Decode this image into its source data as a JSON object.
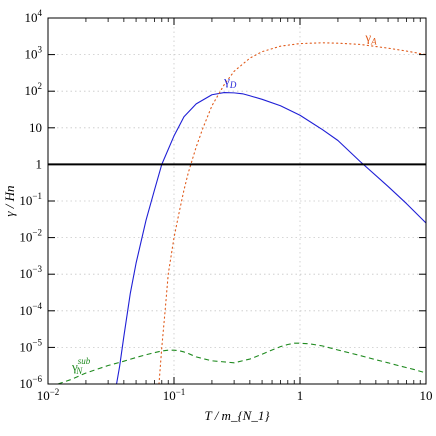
{
  "chart_data": {
    "type": "line",
    "xlabel": "T / m_{N_1}",
    "ylabel": "γ / Hn",
    "xscale": "log",
    "yscale": "log",
    "xlim": [
      0.01,
      10
    ],
    "ylim": [
      1e-06,
      10000
    ],
    "grid": true,
    "x_ticks": [
      {
        "value": 0.01,
        "mant": "10",
        "exp": "−2"
      },
      {
        "value": 0.1,
        "mant": "10",
        "exp": "−1"
      },
      {
        "value": 1,
        "mant": "1",
        "exp": ""
      },
      {
        "value": 10,
        "mant": "10",
        "exp": ""
      }
    ],
    "y_ticks": [
      {
        "value": 1e-06,
        "mant": "10",
        "exp": "−6"
      },
      {
        "value": 1e-05,
        "mant": "10",
        "exp": "−5"
      },
      {
        "value": 0.0001,
        "mant": "10",
        "exp": "−4"
      },
      {
        "value": 0.001,
        "mant": "10",
        "exp": "−3"
      },
      {
        "value": 0.01,
        "mant": "10",
        "exp": "−2"
      },
      {
        "value": 0.1,
        "mant": "10",
        "exp": "−1"
      },
      {
        "value": 1,
        "mant": "1",
        "exp": ""
      },
      {
        "value": 10,
        "mant": "10",
        "exp": ""
      },
      {
        "value": 100,
        "mant": "10",
        "exp": "2"
      },
      {
        "value": 1000,
        "mant": "10",
        "exp": "3"
      },
      {
        "value": 10000,
        "mant": "10",
        "exp": "4"
      }
    ],
    "series": [
      {
        "name": "γ_D",
        "label_main": "γ",
        "label_sub": "D",
        "label_sup": "",
        "label_at": [
          0.25,
          150
        ],
        "color": "#1f1fd6",
        "style": "solid",
        "x": [
          0.035,
          0.037,
          0.04,
          0.045,
          0.05,
          0.06,
          0.07,
          0.08,
          0.1,
          0.12,
          0.15,
          0.2,
          0.25,
          0.3,
          0.35,
          0.4,
          0.5,
          0.7,
          1,
          1.5,
          2,
          3,
          5,
          7,
          10
        ],
        "y": [
          1e-06,
          3e-06,
          2e-05,
          0.0003,
          0.002,
          0.03,
          0.2,
          1,
          6,
          20,
          45,
          80,
          92,
          90,
          85,
          75,
          60,
          40,
          22,
          9,
          4.5,
          1.2,
          0.25,
          0.085,
          0.025
        ]
      },
      {
        "name": "γ_A",
        "label_main": "γ",
        "label_sub": "A",
        "label_sup": "",
        "label_at": [
          3.3,
          2300
        ],
        "color": "#e05a1a",
        "style": "dotted",
        "x": [
          0.076,
          0.08,
          0.085,
          0.09,
          0.1,
          0.11,
          0.12,
          0.13,
          0.15,
          0.17,
          0.2,
          0.25,
          0.3,
          0.4,
          0.5,
          0.7,
          1,
          1.5,
          2,
          3,
          5,
          7,
          10
        ],
        "y": [
          1e-06,
          1e-05,
          0.0001,
          0.001,
          0.01,
          0.05,
          0.2,
          0.6,
          3,
          10,
          40,
          150,
          350,
          800,
          1200,
          1700,
          2000,
          2100,
          2050,
          1900,
          1500,
          1250,
          1000
        ]
      },
      {
        "name": "γ_N^sub",
        "label_main": "γ",
        "label_sub": "N",
        "label_sup": "sub",
        "label_at": [
          0.0155,
          2.3e-06
        ],
        "color": "#1f8a1f",
        "style": "dashed",
        "x": [
          0.012,
          0.015,
          0.02,
          0.03,
          0.04,
          0.05,
          0.06,
          0.07,
          0.08,
          0.09,
          0.1,
          0.11,
          0.12,
          0.13,
          0.15,
          0.2,
          0.3,
          0.4,
          0.5,
          0.6,
          0.7,
          0.8,
          0.9,
          1.0,
          1.2,
          1.5,
          2,
          3,
          4,
          5,
          6,
          7,
          8,
          10
        ],
        "y": [
          1e-06,
          1.3e-06,
          2e-06,
          3.2e-06,
          4.2e-06,
          5.3e-06,
          6.3e-06,
          7.2e-06,
          8e-06,
          8.4e-06,
          8.4e-06,
          8.1e-06,
          7.5e-06,
          6.8e-06,
          5.5e-06,
          4.3e-06,
          3.8e-06,
          4.8e-06,
          6.5e-06,
          8.5e-06,
          1.05e-05,
          1.2e-05,
          1.3e-05,
          1.3e-05,
          1.25e-05,
          1.1e-05,
          8.5e-06,
          6e-06,
          4.6e-06,
          3.8e-06,
          3.2e-06,
          2.8e-06,
          2.5e-06,
          2e-06
        ]
      }
    ],
    "reference_line": {
      "y": 1,
      "color": "#000000"
    }
  }
}
